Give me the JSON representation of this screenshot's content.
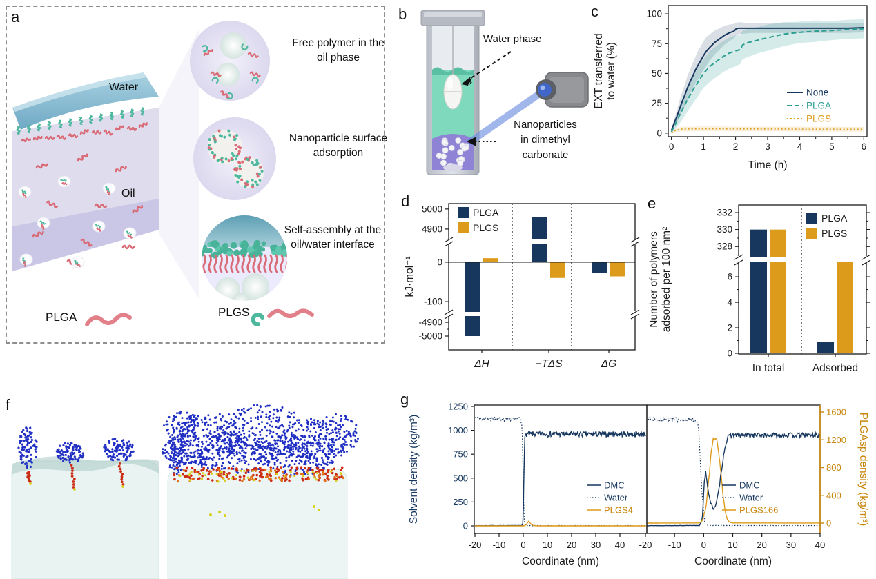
{
  "figure_type": "scientific-paper-figure",
  "colors": {
    "navy": "#17375E",
    "teal": "#2A9D8F",
    "gold": "#DD9B1C",
    "gold_axis": "#C8860B",
    "red_polymer": "#D96B76",
    "teal_polymer": "#4DB89E",
    "ink": "#1A1A1A"
  },
  "panel_labels": {
    "a": "a",
    "b": "b",
    "c": "c",
    "d": "d",
    "e": "e",
    "f": "f",
    "g": "g"
  },
  "panel_a": {
    "water_label": "Water",
    "oil_label": "Oil",
    "annotations": [
      "Free polymer in the oil phase",
      "Nanoparticle surface adsorption",
      "Self-assembly at the oil/water interface"
    ],
    "legend": [
      {
        "name": "PLGA"
      },
      {
        "name": "PLGS"
      }
    ]
  },
  "panel_b": {
    "water_phase_label": "Water phase",
    "nanoparticles_label": "Nanoparticles in dimethyl carbonate",
    "nanoparticles_label_lines": [
      "Nanoparticles",
      "in dimethyl",
      "carbonate"
    ]
  },
  "chart_data": [
    {
      "id": "c",
      "type": "line",
      "xlabel": "Time (h)",
      "ylabel_lines": [
        "EXT transferred",
        "to water (%)"
      ],
      "xlim": [
        -0.1,
        6.1
      ],
      "ylim": [
        -3,
        107
      ],
      "xticks": [
        0,
        1,
        2,
        3,
        4,
        5,
        6
      ],
      "yticks": [
        0,
        25,
        50,
        75,
        100
      ],
      "legend_position": "bottom-right",
      "series": [
        {
          "name": "None",
          "color": "#17375E",
          "style": "solid",
          "x": [
            0,
            0.08,
            0.17,
            0.25,
            0.33,
            0.42,
            0.5,
            0.58,
            0.67,
            0.75,
            0.83,
            0.92,
            1.0,
            1.1,
            1.2,
            1.35,
            1.5,
            1.65,
            1.8,
            1.95,
            2.02,
            2.1,
            2.5,
            3,
            3.5,
            4,
            4.5,
            5,
            5.5,
            6
          ],
          "y": [
            2,
            8,
            14,
            20,
            26,
            32,
            38,
            43,
            48,
            53,
            57,
            61,
            65,
            69,
            72,
            76,
            79,
            82,
            84,
            85.5,
            87.5,
            88,
            88,
            88,
            88,
            88,
            88,
            88,
            88,
            88.5
          ],
          "band_halfwidth": [
            1,
            3,
            5,
            7,
            8,
            9,
            10,
            10,
            11,
            11,
            12,
            12,
            12,
            12,
            11,
            10,
            9,
            8,
            7,
            6,
            5,
            5,
            4,
            4,
            4,
            4,
            4,
            4,
            4,
            4
          ]
        },
        {
          "name": "PLGA",
          "color": "#2A9D8F",
          "style": "dashed",
          "x": [
            0,
            0.1,
            0.2,
            0.33,
            0.5,
            0.67,
            0.83,
            1.0,
            1.2,
            1.4,
            1.6,
            1.8,
            2.0,
            2.15,
            2.22,
            2.4,
            2.7,
            3,
            3.5,
            4,
            4.5,
            5,
            5.5,
            6
          ],
          "y": [
            1,
            6,
            12,
            19,
            28,
            36,
            43,
            50,
            56,
            60,
            64,
            67,
            69,
            70,
            74,
            76,
            78,
            80,
            83,
            84.5,
            85.5,
            86,
            87,
            87.5
          ],
          "band_halfwidth": [
            1,
            3,
            6,
            8,
            10,
            11,
            12,
            12,
            13,
            13,
            13,
            13,
            13,
            12,
            12,
            12,
            11,
            11,
            10,
            9,
            9,
            8,
            8,
            8
          ]
        },
        {
          "name": "PLGS",
          "color": "#DD9B1C",
          "style": "dotted",
          "x": [
            0,
            0.15,
            0.3,
            0.6,
            1,
            1.5,
            2,
            2.5,
            3,
            3.5,
            4,
            4.5,
            5,
            5.5,
            6
          ],
          "y": [
            0.5,
            2.5,
            3.3,
            3.5,
            3.6,
            3.6,
            3.5,
            3.5,
            3.4,
            3.4,
            3.3,
            3.3,
            3.3,
            3.2,
            3.2
          ],
          "band_halfwidth": [
            0.5,
            1.5,
            2,
            2,
            2,
            2,
            2,
            2,
            2,
            2,
            2,
            2,
            2,
            2,
            2
          ]
        }
      ]
    },
    {
      "id": "d",
      "type": "bar",
      "ylabel": "kJ·mol⁻¹",
      "categories": [
        "ΔH",
        "−TΔS",
        "ΔG"
      ],
      "broken_axis": {
        "upper_ticks": [
          5000,
          4900
        ],
        "middle_ticks": [
          0,
          -100
        ],
        "lower_ticks": [
          -4900,
          -5000
        ]
      },
      "series": [
        {
          "name": "PLGA",
          "color": "#17375E",
          "values": [
            -5000,
            4960,
            -28
          ]
        },
        {
          "name": "PLGS",
          "color": "#DD9B1C",
          "values": [
            10,
            -40,
            -36
          ]
        }
      ],
      "legend_position": "top-left"
    },
    {
      "id": "e",
      "type": "bar",
      "ylabel_lines": [
        "Number of polymers",
        "adsorbed per 100 nm²"
      ],
      "categories": [
        "In total",
        "Adsorbed"
      ],
      "broken_axis": {
        "upper_ticks": [
          332,
          330,
          328
        ],
        "lower_ticks": [
          6,
          4,
          2,
          0
        ]
      },
      "series": [
        {
          "name": "PLGA",
          "color": "#17375E",
          "values": [
            330,
            0.9
          ]
        },
        {
          "name": "PLGS",
          "color": "#DD9B1C",
          "values": [
            330,
            7.14
          ]
        }
      ],
      "note": "PLGS adsorbed bar extends up to the axis break",
      "legend_position": "top-right"
    },
    {
      "id": "g_left",
      "type": "line",
      "xlabel": "Coordinate (nm)",
      "ylabel": "Solvent density (kg/m³)",
      "xlim": [
        -20,
        51
      ],
      "ylim": [
        -116,
        1265
      ],
      "xticks": [
        -20,
        -10,
        0,
        10,
        20,
        30,
        40
      ],
      "yticks": [
        0,
        250,
        500,
        750,
        1000,
        1250
      ],
      "legend_position": "center-right",
      "series": [
        {
          "name": "DMC",
          "color": "#17375E",
          "style": "solid",
          "axis": "left",
          "keypoints": [
            [
              -20,
              2,
              2
            ],
            [
              -0.6,
              3,
              2
            ],
            [
              -0.1,
              30,
              0
            ],
            [
              0.6,
              930,
              0
            ],
            [
              1.2,
              960,
              28
            ],
            [
              51,
              960,
              28
            ]
          ]
        },
        {
          "name": "Water",
          "color": "#17375E",
          "style": "dotted",
          "axis": "left",
          "keypoints": [
            [
              -20,
              1120,
              22
            ],
            [
              -1.2,
              1118,
              22
            ],
            [
              -0.5,
              1050,
              0
            ],
            [
              0.4,
              40,
              0
            ],
            [
              1.0,
              3,
              2
            ],
            [
              51,
              2,
              2
            ]
          ]
        },
        {
          "name": "PLGS4",
          "color": "#DD9B1C",
          "style": "solid",
          "axis": "left",
          "keypoints": [
            [
              -20,
              0,
              0
            ],
            [
              0.3,
              0,
              0
            ],
            [
              1.2,
              14,
              3
            ],
            [
              2.2,
              48,
              4
            ],
            [
              3.2,
              20,
              3
            ],
            [
              4.2,
              3,
              1
            ],
            [
              6,
              0,
              0
            ],
            [
              51,
              0,
              0
            ]
          ]
        }
      ]
    },
    {
      "id": "g_right",
      "type": "line",
      "xlabel": "Coordinate (nm)",
      "ylabel_right": "PLGAsp density (kg/m³)",
      "xlim": [
        -20,
        40
      ],
      "ylim": [
        -116,
        1265
      ],
      "ylim_right": [
        -130,
        1700
      ],
      "xticks": [
        -20,
        -10,
        0,
        10,
        20,
        30,
        40
      ],
      "yticks_right": [
        0,
        400,
        800,
        1200,
        1600
      ],
      "legend_position": "center-right",
      "series": [
        {
          "name": "DMC",
          "color": "#17375E",
          "style": "solid",
          "axis": "left",
          "keypoints": [
            [
              -20,
              2,
              1
            ],
            [
              -1.5,
              4,
              2
            ],
            [
              -0.5,
              60,
              5
            ],
            [
              0.3,
              480,
              20
            ],
            [
              0.7,
              585,
              20
            ],
            [
              1.3,
              420,
              20
            ],
            [
              2.2,
              260,
              15
            ],
            [
              3.2,
              180,
              10
            ],
            [
              4.2,
              215,
              12
            ],
            [
              5.2,
              370,
              15
            ],
            [
              6.2,
              600,
              18
            ],
            [
              7.2,
              810,
              20
            ],
            [
              8.2,
              920,
              22
            ],
            [
              9.5,
              950,
              25
            ],
            [
              40,
              950,
              25
            ]
          ]
        },
        {
          "name": "Water",
          "color": "#17375E",
          "style": "dotted",
          "axis": "left",
          "keypoints": [
            [
              -20,
              1118,
              25
            ],
            [
              -3,
              1112,
              25
            ],
            [
              -1.8,
              1050,
              10
            ],
            [
              -0.6,
              350,
              0
            ],
            [
              0.4,
              25,
              3
            ],
            [
              1.5,
              4,
              1
            ],
            [
              40,
              3,
              1
            ]
          ]
        },
        {
          "name": "PLGS166",
          "color": "#DD9B1C",
          "style": "solid",
          "axis": "right",
          "keypoints": [
            [
              -20,
              0,
              0
            ],
            [
              -1.5,
              2,
              0
            ],
            [
              -0.5,
              30,
              5
            ],
            [
              0.8,
              230,
              15
            ],
            [
              1.8,
              640,
              20
            ],
            [
              2.6,
              1020,
              20
            ],
            [
              3.3,
              1230,
              15
            ],
            [
              3.9,
              1190,
              15
            ],
            [
              4.3,
              1240,
              10
            ],
            [
              5.0,
              1080,
              15
            ],
            [
              5.8,
              780,
              15
            ],
            [
              6.6,
              420,
              15
            ],
            [
              7.4,
              160,
              10
            ],
            [
              8.2,
              45,
              5
            ],
            [
              9.0,
              10,
              2
            ],
            [
              10,
              2,
              0
            ],
            [
              40,
              1,
              0
            ]
          ]
        }
      ]
    }
  ]
}
